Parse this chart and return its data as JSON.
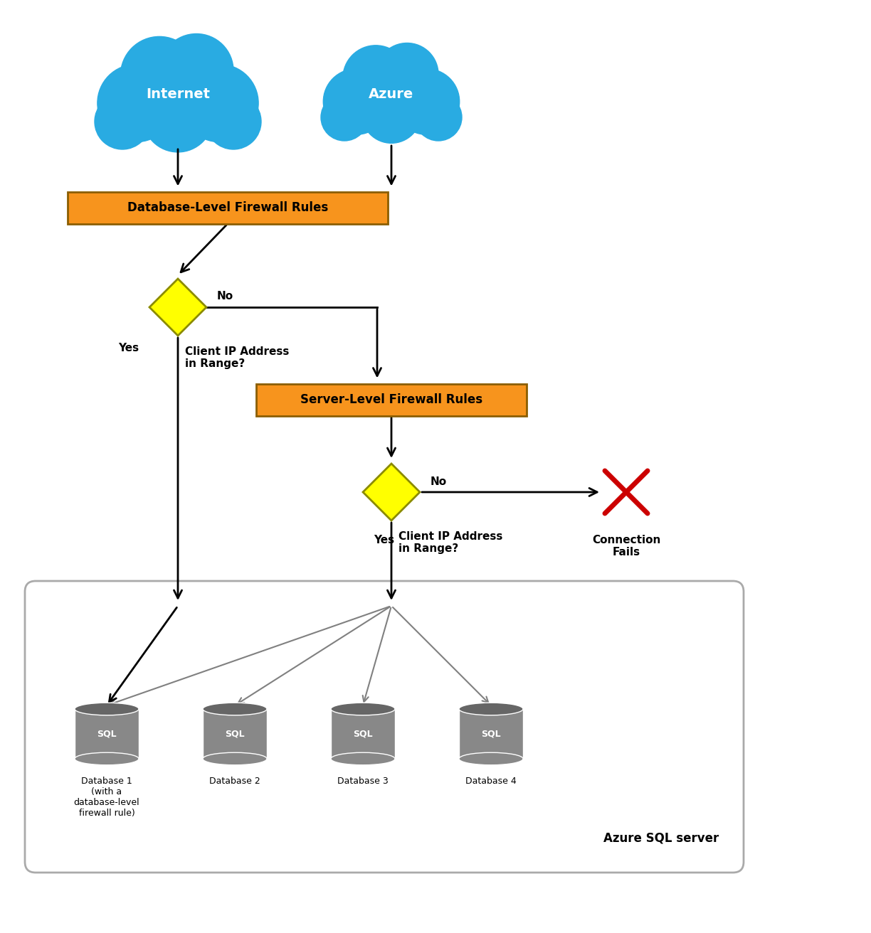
{
  "bg_color": "#ffffff",
  "cloud_color": "#29ABE2",
  "cloud_text_color": "#ffffff",
  "firewall_box_color": "#F7941D",
  "firewall_box_edge": "#8B5E00",
  "firewall_text_color": "#000000",
  "diamond_color": "#FFFF00",
  "diamond_edge": "#8B8B00",
  "db_cylinder_color": "#808080",
  "db_text_color": "#ffffff",
  "arrow_color": "#000000",
  "gray_arrow_color": "#808080",
  "server_box_color": "#ffffff",
  "server_box_edge": "#aaaaaa",
  "x_color": "#cc0000",
  "internet_label": "Internet",
  "azure_label": "Azure",
  "db_firewall_label": "Database-Level Firewall Rules",
  "server_firewall_label": "Server-Level Firewall Rules",
  "diamond1_label": "Client IP Address\nin Range?",
  "diamond2_label": "Client IP Address\nin Range?",
  "yes1_label": "Yes",
  "no1_label": "No",
  "yes2_label": "Yes",
  "no2_label": "No",
  "connection_fails_label": "Connection\nFails",
  "databases": [
    "Database 1\n(with a\ndatabase-level\nfirewall rule)",
    "Database 2",
    "Database 3",
    "Database 4"
  ],
  "sql_label": "SQL",
  "server_label": "Azure SQL server"
}
